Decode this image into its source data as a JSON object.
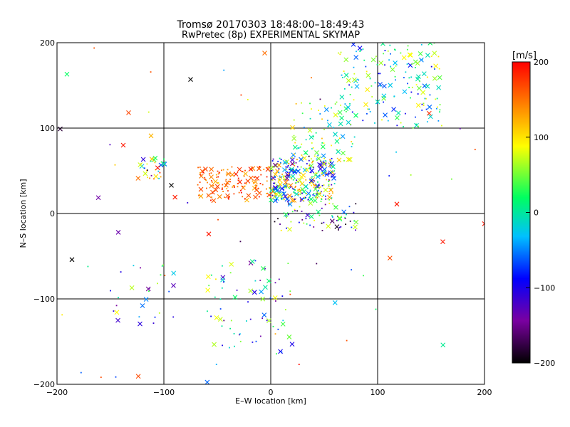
{
  "chart_data": {
    "type": "scatter",
    "title": "Tromsø 20170303 18:48:00–18:49:43",
    "subtitle": "RwPretec (8p) EXPERIMENTAL SKYMAP",
    "xlabel": "E–W location [km]",
    "ylabel": "N–S location [km]",
    "xlim": [
      -200,
      200
    ],
    "ylim": [
      -200,
      200
    ],
    "xticks": [
      -200,
      -100,
      0,
      100,
      200
    ],
    "yticks": [
      -200,
      -100,
      0,
      100,
      200
    ],
    "xtick_labels": [
      "−200",
      "−100",
      "0",
      "100",
      "200"
    ],
    "ytick_labels": [
      "−200",
      "−100",
      "0",
      "100",
      "200"
    ],
    "grid_lines": [
      -100,
      0,
      100
    ],
    "markers": [
      "dot",
      "cross"
    ],
    "colorbar": {
      "label": "[m/s]",
      "range": [
        -200,
        200
      ],
      "ticks": [
        200,
        100,
        0,
        -100,
        -200
      ],
      "tick_labels": [
        "200",
        "100",
        "0",
        "−100",
        "−200"
      ],
      "stops": [
        "#000000",
        "#7a00a0",
        "#0000ff",
        "#00c0ff",
        "#00ff60",
        "#ffff00",
        "#ff8000",
        "#ff0000"
      ]
    },
    "clusters": [
      {
        "region": "central",
        "x": [
          0,
          60
        ],
        "y": [
          15,
          65
        ],
        "v": [
          -150,
          150
        ],
        "count": 320
      },
      {
        "region": "west-red band",
        "x": [
          -70,
          0
        ],
        "y": [
          15,
          55
        ],
        "v": [
          120,
          200
        ],
        "count": 140
      },
      {
        "region": "far-west",
        "x": [
          -125,
          -95
        ],
        "y": [
          40,
          65
        ],
        "v": [
          -200,
          200
        ],
        "count": 30
      },
      {
        "region": "north-east",
        "x": [
          60,
          160
        ],
        "y": [
          100,
          200
        ],
        "v": [
          -100,
          100
        ],
        "count": 170
      },
      {
        "region": "north",
        "x": [
          20,
          80
        ],
        "y": [
          60,
          130
        ],
        "v": [
          -50,
          120
        ],
        "count": 80
      },
      {
        "region": "south-east",
        "x": [
          0,
          80
        ],
        "y": [
          -20,
          15
        ],
        "v": [
          -200,
          100
        ],
        "count": 70
      },
      {
        "region": "south",
        "x": [
          -60,
          20
        ],
        "y": [
          -165,
          -55
        ],
        "v": [
          -150,
          100
        ],
        "count": 70
      },
      {
        "region": "south-west",
        "x": [
          -150,
          -90
        ],
        "y": [
          -130,
          -60
        ],
        "v": [
          -150,
          100
        ],
        "count": 25
      },
      {
        "region": "scattered",
        "x": [
          -200,
          200
        ],
        "y": [
          -200,
          200
        ],
        "v": [
          -200,
          200
        ],
        "count": 60
      }
    ],
    "named_points": [
      {
        "x": -75,
        "y": 157,
        "v": -200,
        "marker": "cross"
      },
      {
        "x": -133,
        "y": 118,
        "v": 170,
        "marker": "cross"
      },
      {
        "x": -112,
        "y": 91,
        "v": 120,
        "marker": "cross"
      },
      {
        "x": -138,
        "y": 80,
        "v": 190,
        "marker": "cross"
      },
      {
        "x": -186,
        "y": -54,
        "v": -200,
        "marker": "cross"
      },
      {
        "x": -58,
        "y": -24,
        "v": 190,
        "marker": "cross"
      },
      {
        "x": 161,
        "y": -33,
        "v": 190,
        "marker": "cross"
      },
      {
        "x": 118,
        "y": 11,
        "v": 190,
        "marker": "cross"
      },
      {
        "x": 200,
        "y": -12,
        "v": 190,
        "marker": "cross"
      },
      {
        "x": -197,
        "y": 99,
        "v": -180,
        "marker": "cross"
      },
      {
        "x": -93,
        "y": 33,
        "v": -200,
        "marker": "cross"
      },
      {
        "x": 38,
        "y": 159,
        "v": 150,
        "marker": "dot"
      },
      {
        "x": 20,
        "y": -153,
        "v": -100,
        "marker": "cross"
      }
    ]
  }
}
